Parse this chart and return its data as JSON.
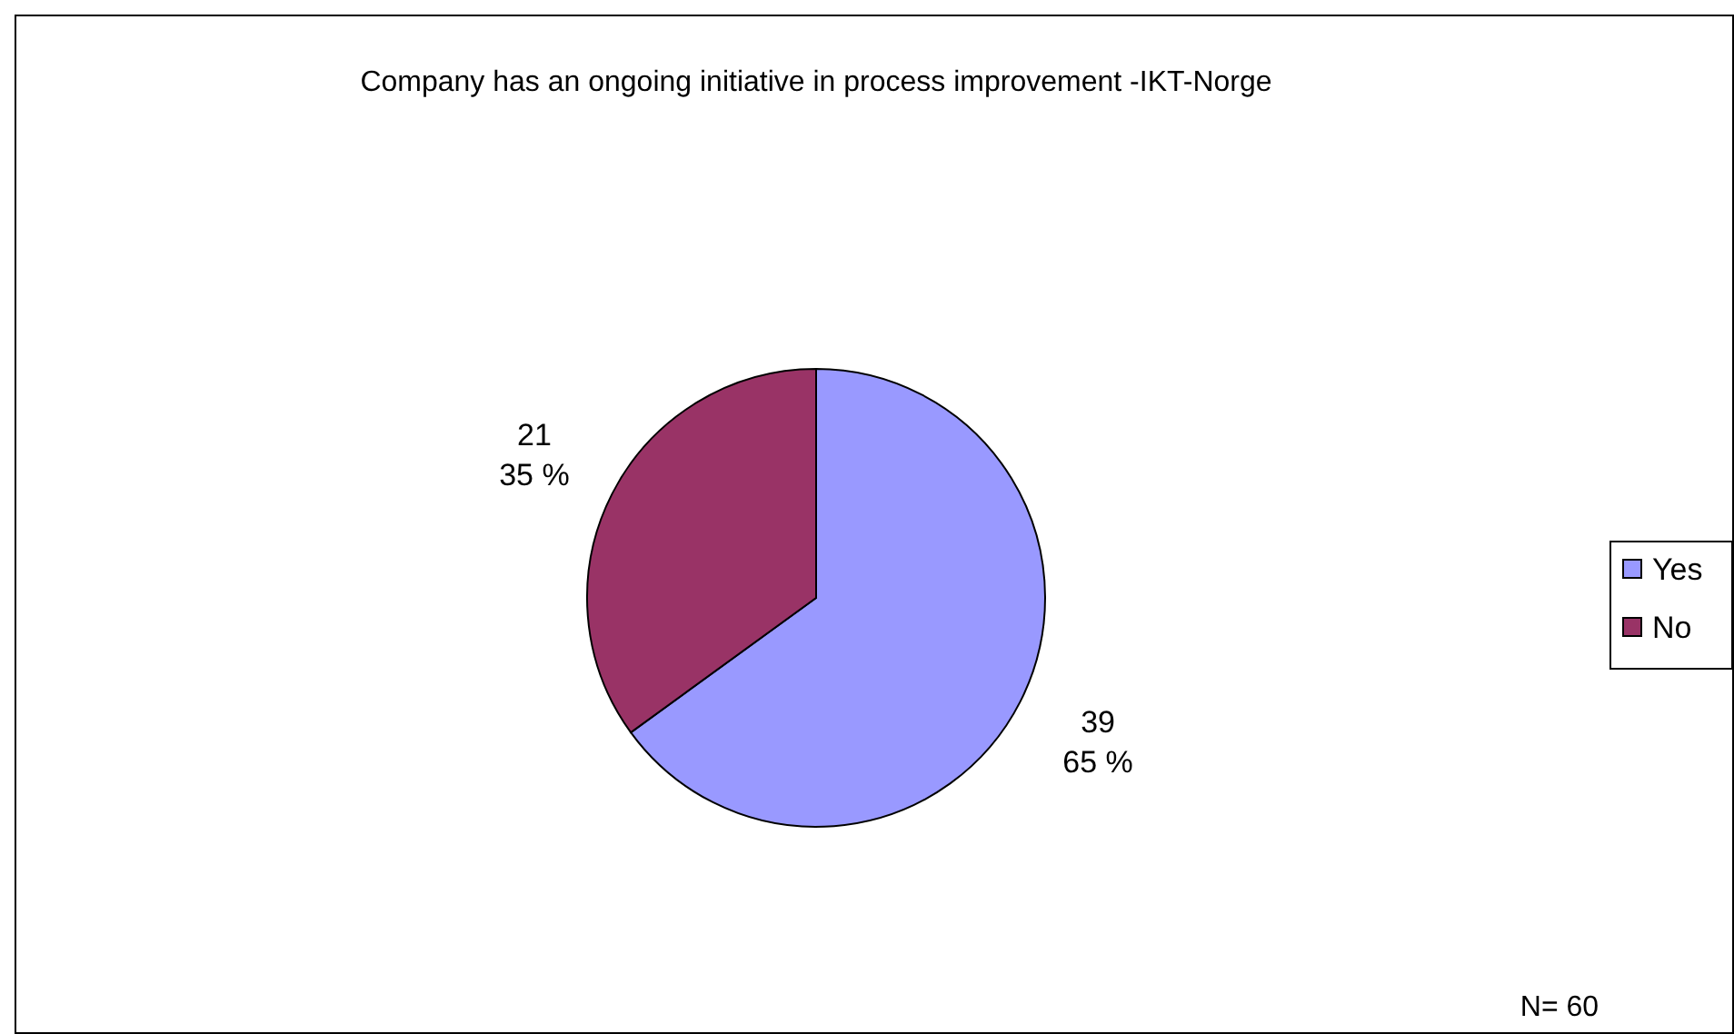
{
  "chart_data": {
    "type": "pie",
    "title": "Company has an ongoing initiative in process improvement -IKT-Norge",
    "categories": [
      "Yes",
      "No"
    ],
    "values": [
      39,
      21
    ],
    "colors": [
      "#9999ff",
      "#993366"
    ],
    "value_labels": [
      "39\n65 %",
      "21\n35 %"
    ],
    "legend": "right",
    "annotations": [
      "N= 60"
    ]
  }
}
